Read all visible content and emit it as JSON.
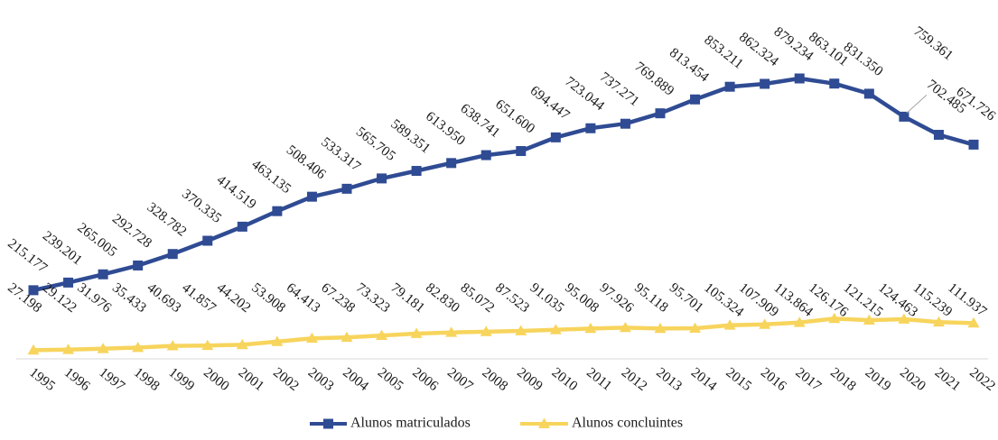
{
  "chart_data": {
    "type": "line",
    "categories": [
      "1995",
      "1996",
      "1997",
      "1998",
      "1999",
      "2000",
      "2001",
      "2002",
      "2003",
      "2004",
      "2005",
      "2006",
      "2007",
      "2008",
      "2009",
      "2010",
      "2011",
      "2012",
      "2013",
      "2014",
      "2015",
      "2016",
      "2017",
      "2018",
      "2019",
      "2020",
      "2021",
      "2022"
    ],
    "series": [
      {
        "name": "Alunos matriculados",
        "color": "#2f4b93",
        "marker": "square",
        "values": [
          215177,
          239201,
          265005,
          292728,
          328782,
          370335,
          414519,
          463135,
          508406,
          533317,
          565705,
          589351,
          613950,
          638741,
          651600,
          694447,
          723044,
          737271,
          769889,
          813454,
          853211,
          862324,
          879234,
          863101,
          831350,
          759361,
          702485,
          671726
        ],
        "labels": [
          "215.177",
          "239.201",
          "265.005",
          "292.728",
          "328.782",
          "370.335",
          "414.519",
          "463.135",
          "508.406",
          "533.317",
          "565.705",
          "589.351",
          "613.950",
          "638.741",
          "651.600",
          "694.447",
          "723.044",
          "737.271",
          "769.889",
          "813.454",
          "853.211",
          "862.324",
          "879.234",
          "863.101",
          "831.350",
          "759.361",
          "702.485",
          "671.726"
        ]
      },
      {
        "name": "Alunos concluintes",
        "color": "#f7d45c",
        "marker": "triangle",
        "values": [
          27198,
          29122,
          31976,
          35433,
          40693,
          41857,
          44202,
          53908,
          64413,
          67238,
          73323,
          79181,
          82830,
          85072,
          87523,
          91035,
          95008,
          97926,
          95118,
          95701,
          105324,
          107909,
          113864,
          126176,
          121215,
          124463,
          115239,
          111937
        ],
        "labels": [
          "27.198",
          "29.122",
          "31.976",
          "35.433",
          "40.693",
          "41.857",
          "44.202",
          "53.908",
          "64.413",
          "67.238",
          "73.323",
          "79.181",
          "82.830",
          "85.072",
          "87.523",
          "91.035",
          "95.008",
          "97.926",
          "95.118",
          "95.701",
          "105.324",
          "107.909",
          "113.864",
          "126.176",
          "121.215",
          "124.463",
          "115.239",
          "111.937"
        ]
      }
    ],
    "ylim": [
      0,
      950000
    ],
    "grid": false,
    "legend_position": "bottom"
  }
}
